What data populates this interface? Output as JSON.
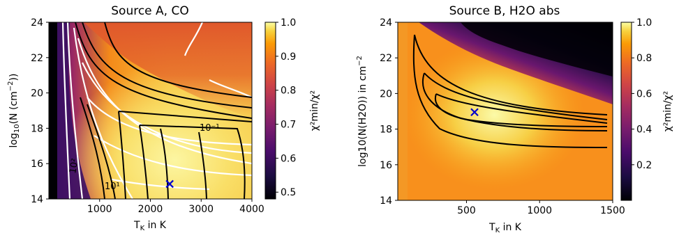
{
  "chart_data": [
    {
      "type": "heatmap",
      "title": "Source A, CO",
      "xlabel": "T",
      "xlabel_sub": "K",
      "xlabel_suffix": " in K",
      "ylabel_pre": "log",
      "ylabel_sub": "10",
      "ylabel_suffix": "(N (cm",
      "ylabel_sup": "−2",
      "ylabel_end": "))",
      "xlim": [
        0,
        4000
      ],
      "ylim": [
        14,
        24
      ],
      "xticks": [
        "1000",
        "2000",
        "3000",
        "4000"
      ],
      "xtick_values": [
        1000,
        2000,
        3000,
        4000
      ],
      "yticks": [
        "14",
        "16",
        "18",
        "20",
        "22",
        "24"
      ],
      "ytick_values": [
        14,
        16,
        18,
        20,
        22,
        24
      ],
      "colorbar": {
        "range": [
          0.48,
          1.0
        ],
        "ticks": [
          "0.5",
          "0.6",
          "0.7",
          "0.8",
          "0.9",
          "1.0"
        ],
        "tick_values": [
          0.5,
          0.6,
          0.7,
          0.8,
          0.9,
          1.0
        ],
        "label": "χ²min/χ²"
      },
      "best_fit": {
        "x": 2380,
        "y": 14.85,
        "marker": "x",
        "color": "#0000cc"
      },
      "contour_labels": [
        "10¹",
        "10²",
        "10⁻¹",
        "10"
      ]
    },
    {
      "type": "heatmap",
      "title": "Source B, H2O abs",
      "xlabel": "T",
      "xlabel_sub": "K",
      "xlabel_suffix": " in K",
      "ylabel": "log10(N(H2O)) in cm",
      "ylabel_sup": "−2",
      "xlim": [
        30,
        1500
      ],
      "ylim": [
        14,
        24
      ],
      "xticks": [
        "500",
        "1000",
        "1500"
      ],
      "xtick_values": [
        500,
        1000,
        1500
      ],
      "yticks": [
        "14",
        "16",
        "18",
        "20",
        "22",
        "24"
      ],
      "ytick_values": [
        14,
        16,
        18,
        20,
        22,
        24
      ],
      "colorbar": {
        "range": [
          0.0,
          1.0
        ],
        "ticks": [
          "0.2",
          "0.4",
          "0.6",
          "0.8",
          "1.0"
        ],
        "tick_values": [
          0.2,
          0.4,
          0.6,
          0.8,
          1.0
        ],
        "label": "χ²min/χ²"
      },
      "best_fit": {
        "x": 555,
        "y": 18.95,
        "marker": "x",
        "color": "#0000cc"
      }
    }
  ]
}
